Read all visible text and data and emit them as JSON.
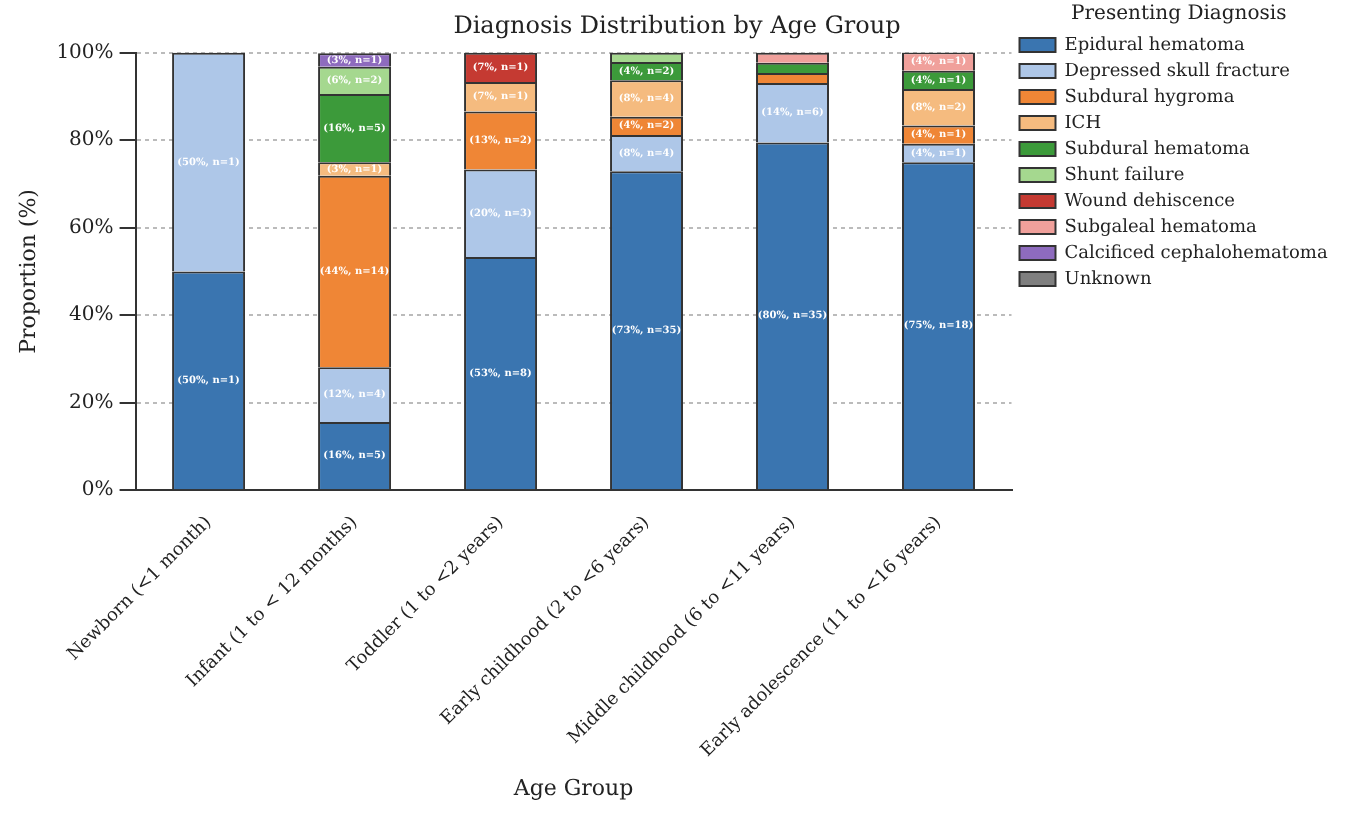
{
  "chart_data": {
    "type": "bar",
    "stacked": true,
    "title": "Diagnosis Distribution by Age Group",
    "xlabel": "Age Group",
    "ylabel": "Proportion (%)",
    "legend_title": "Presenting Diagnosis",
    "legend": "top right",
    "grid": "y",
    "categories": [
      "Newborn (<1 month)",
      "Infant (1 to < 12 months)",
      "Toddler (1 to <2 years)",
      "Early childhood (2 to <6 years)",
      "Middle childhood (6 to <11 years)",
      "Early adolescence (11 to <16 years)"
    ],
    "ylim": [
      0,
      100
    ],
    "yticks": [
      {
        "value": 0,
        "label": "0%"
      },
      {
        "value": 20,
        "label": "20%"
      },
      {
        "value": 40,
        "label": "40%"
      },
      {
        "value": 60,
        "label": "60%"
      },
      {
        "value": 80,
        "label": "80%"
      },
      {
        "value": 100,
        "label": "100%"
      }
    ],
    "series": [
      {
        "name": "Epidural hematoma",
        "color": "#3a75b0",
        "values": [
          50,
          15.6,
          53.3,
          72.9,
          79.5,
          75
        ],
        "value_labels": [
          "(50%, n=1)",
          "(16%, n=5)",
          "(53%, n=8)",
          "(73%, n=35)",
          "(80%, n=35)",
          "(75%, n=18)"
        ]
      },
      {
        "name": "Depressed skull fracture",
        "color": "#aec7e8",
        "values": [
          50,
          12.5,
          20,
          8.3,
          13.6,
          4.2
        ],
        "value_labels": [
          "(50%, n=1)",
          "(12%, n=4)",
          "(20%, n=3)",
          "(8%, n=4)",
          "(14%, n=6)",
          "(4%, n=1)"
        ]
      },
      {
        "name": "Subdural hygroma",
        "color": "#ef8636",
        "values": [
          null,
          43.8,
          13.3,
          4.2,
          2.3,
          4.2
        ],
        "value_labels": [
          null,
          "(44%, n=14)",
          "(13%, n=2)",
          "(4%, n=2)",
          null,
          "(4%, n=1)"
        ]
      },
      {
        "name": "ICH",
        "color": "#f5bb7f",
        "values": [
          null,
          3.1,
          6.7,
          8.3,
          null,
          8.3
        ],
        "value_labels": [
          null,
          "(3%, n=1)",
          "(7%, n=1)",
          "(8%, n=4)",
          null,
          "(8%, n=2)"
        ]
      },
      {
        "name": "Subdural hematoma",
        "color": "#3c9a3a",
        "values": [
          null,
          15.6,
          null,
          4.2,
          2.3,
          4.2
        ],
        "value_labels": [
          null,
          "(16%, n=5)",
          null,
          "(4%, n=2)",
          null,
          "(4%, n=1)"
        ]
      },
      {
        "name": "Shunt failure",
        "color": "#a5d88f",
        "values": [
          null,
          6.2,
          null,
          2.1,
          null,
          null
        ],
        "value_labels": [
          null,
          "(6%, n=2)",
          null,
          null,
          null,
          null
        ]
      },
      {
        "name": "Wound dehiscence",
        "color": "#c53a32",
        "values": [
          null,
          null,
          6.7,
          null,
          null,
          null
        ],
        "value_labels": [
          null,
          null,
          "(7%, n=1)",
          null,
          null,
          null
        ]
      },
      {
        "name": "Subgaleal hematoma",
        "color": "#f0a09b",
        "values": [
          null,
          null,
          null,
          null,
          2.3,
          4.2
        ],
        "value_labels": [
          null,
          null,
          null,
          null,
          null,
          "(4%, n=1)"
        ]
      },
      {
        "name": "Calcificed cephalohematoma",
        "color": "#8e6bbe",
        "values": [
          null,
          3.1,
          null,
          null,
          null,
          null
        ],
        "value_labels": [
          null,
          "(3%, n=1)",
          null,
          null,
          null,
          null
        ]
      },
      {
        "name": "Unknown",
        "color": "#7f7f7f",
        "values": [
          null,
          null,
          null,
          null,
          null,
          null
        ],
        "value_labels": [
          null,
          null,
          null,
          null,
          null,
          null
        ]
      }
    ]
  }
}
